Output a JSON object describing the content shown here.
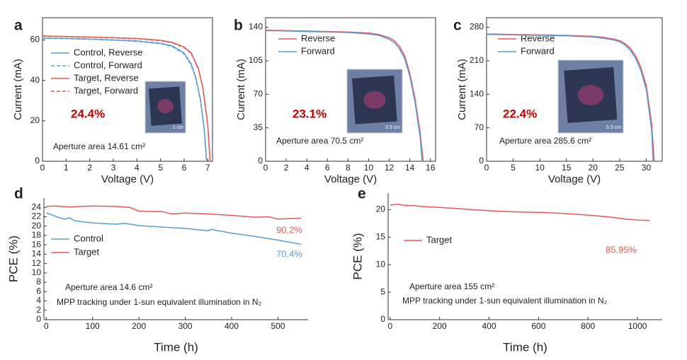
{
  "chart_data": [
    {
      "type": "line",
      "panel_label": "a",
      "xlabel": "Voltage (V)",
      "ylabel": "Current (mA)",
      "xlim": [
        0,
        7.2
      ],
      "ylim": [
        0,
        71
      ],
      "xticks": [
        0,
        1,
        2,
        3,
        4,
        5,
        6,
        7
      ],
      "yticks": [
        0,
        20,
        40,
        60
      ],
      "legend": "upper left",
      "series": [
        {
          "name": "Control, Reverse",
          "color": "#5b9bd5",
          "dash": false,
          "x": [
            0,
            1,
            2,
            3,
            4,
            5,
            5.5,
            6,
            6.3,
            6.5,
            6.7,
            6.85,
            6.95
          ],
          "values": [
            61,
            60.7,
            60.4,
            60,
            59.5,
            58.3,
            57,
            53.5,
            48,
            41,
            30,
            16,
            0
          ]
        },
        {
          "name": "Control, Forward",
          "color": "#5b9bd5",
          "dash": true,
          "x": [
            0,
            1,
            2,
            3,
            4,
            5,
            5.5,
            6,
            6.3,
            6.5,
            6.7,
            6.85,
            6.95
          ],
          "values": [
            60.9,
            60.6,
            60.3,
            59.9,
            59.3,
            58.1,
            56.7,
            53.1,
            47.5,
            40.5,
            29.5,
            15.5,
            0
          ]
        },
        {
          "name": "Target, Reverse",
          "color": "#e05a5a",
          "dash": false,
          "x": [
            0,
            1,
            2,
            3,
            4,
            5,
            5.5,
            6,
            6.3,
            6.6,
            6.8,
            7,
            7.1
          ],
          "values": [
            62,
            61.7,
            61.4,
            61.1,
            60.7,
            59.8,
            58.8,
            56.5,
            53.5,
            46,
            36,
            18,
            0
          ]
        },
        {
          "name": "Target, Forward",
          "color": "#e05a5a",
          "dash": true,
          "x": [
            0,
            1,
            2,
            3,
            4,
            5,
            5.5,
            6,
            6.3,
            6.6,
            6.8,
            7,
            7.1
          ],
          "values": [
            61.9,
            61.6,
            61.3,
            61,
            60.6,
            59.6,
            58.6,
            56.2,
            53.2,
            45.6,
            35.5,
            17.5,
            0
          ]
        }
      ],
      "annotations": [
        {
          "text": "24.4%",
          "color": "#c00000"
        },
        {
          "text": "Aperture area 14.61 cm²",
          "color": "#222222"
        }
      ],
      "inset_label": "1 cm"
    },
    {
      "type": "line",
      "panel_label": "b",
      "xlabel": "Voltage (V)",
      "ylabel": "Current (mA)",
      "xlim": [
        0,
        16.5
      ],
      "ylim": [
        0,
        150
      ],
      "xticks": [
        0,
        2,
        4,
        6,
        8,
        10,
        12,
        14,
        16
      ],
      "yticks": [
        0,
        35,
        70,
        105,
        140
      ],
      "legend": "upper left",
      "series": [
        {
          "name": "Reverse",
          "color": "#e05a5a",
          "dash": false,
          "x": [
            0,
            2,
            4,
            6,
            8,
            10,
            11,
            12,
            12.5,
            13,
            13.5,
            14,
            14.5,
            15,
            15.3
          ],
          "values": [
            137,
            136.5,
            136,
            135.5,
            135,
            134,
            132.5,
            129,
            126,
            120,
            110,
            92,
            66,
            30,
            0
          ]
        },
        {
          "name": "Forward",
          "color": "#5b9bd5",
          "dash": false,
          "x": [
            0,
            2,
            4,
            6,
            8,
            10,
            11,
            12,
            12.5,
            13,
            13.5,
            14,
            14.5,
            15,
            15.2
          ],
          "values": [
            136.5,
            136,
            135.5,
            135,
            134.5,
            133,
            131.5,
            127.5,
            124,
            117.5,
            107,
            89,
            62,
            25,
            0
          ]
        }
      ],
      "annotations": [
        {
          "text": "23.1%",
          "color": "#c00000"
        },
        {
          "text": "Aperture area 70.5 cm²",
          "color": "#222222"
        }
      ],
      "inset_label": "3.5 cm"
    },
    {
      "type": "line",
      "panel_label": "c",
      "xlabel": "Voltage (V)",
      "ylabel": "Current (mA)",
      "xlim": [
        0,
        33
      ],
      "ylim": [
        0,
        300
      ],
      "xticks": [
        0,
        5,
        10,
        15,
        20,
        25,
        30
      ],
      "yticks": [
        0,
        70,
        140,
        210,
        280
      ],
      "legend": "upper left",
      "series": [
        {
          "name": "Reverse",
          "color": "#e05a5a",
          "dash": false,
          "x": [
            0,
            5,
            10,
            15,
            20,
            22,
            24,
            25,
            26,
            27,
            28,
            29,
            30,
            31,
            31.5
          ],
          "values": [
            266,
            265,
            264,
            263,
            261,
            259,
            255,
            252,
            246,
            236,
            220,
            196,
            158,
            80,
            0
          ]
        },
        {
          "name": "Forward",
          "color": "#5b9bd5",
          "dash": false,
          "x": [
            0,
            5,
            10,
            15,
            20,
            22,
            24,
            25,
            26,
            27,
            28,
            29,
            30,
            31,
            31.3
          ],
          "values": [
            265,
            264,
            263,
            262,
            259.5,
            257,
            253,
            249.5,
            243,
            232,
            215,
            189,
            150,
            66,
            0
          ]
        }
      ],
      "annotations": [
        {
          "text": "22.4%",
          "color": "#c00000"
        },
        {
          "text": "Aperture area 285.6 cm²",
          "color": "#222222"
        }
      ],
      "inset_label": "5.5 cm"
    },
    {
      "type": "line",
      "panel_label": "d",
      "xlabel": "Time (h)",
      "ylabel": "PCE (%)",
      "xlim": [
        -5,
        565
      ],
      "ylim": [
        0,
        26
      ],
      "xticks": [
        0,
        100,
        200,
        300,
        400,
        500
      ],
      "yticks": [
        0,
        2,
        4,
        6,
        8,
        10,
        12,
        14,
        16,
        18,
        20,
        22,
        24
      ],
      "legend": "center left",
      "series": [
        {
          "name": "Control",
          "color": "#5b9bd5",
          "dash": false,
          "x": [
            0,
            10,
            25,
            40,
            50,
            60,
            80,
            100,
            150,
            170,
            200,
            250,
            300,
            350,
            355,
            400,
            450,
            500,
            550
          ],
          "values": [
            22.8,
            22.5,
            21.9,
            21.5,
            21.8,
            21.2,
            20.9,
            20.7,
            20.4,
            20.6,
            20.1,
            19.8,
            19.5,
            19,
            19.3,
            18.5,
            17.8,
            17,
            16.1
          ]
        },
        {
          "name": "Target",
          "color": "#e05a5a",
          "dash": false,
          "x": [
            0,
            20,
            50,
            100,
            150,
            180,
            200,
            250,
            270,
            300,
            350,
            400,
            450,
            480,
            500,
            550
          ],
          "values": [
            24.2,
            24.3,
            24.1,
            24.3,
            24.2,
            24,
            23.2,
            23.1,
            22.6,
            22.8,
            22.6,
            22.3,
            21.9,
            22,
            21.5,
            21.7
          ]
        }
      ],
      "annotations": [
        {
          "text": "90.2%",
          "color": "#e05a5a"
        },
        {
          "text": "70.4%",
          "color": "#5b9bd5"
        },
        {
          "text": "Aperture area 14.6 cm²",
          "color": "#222222"
        },
        {
          "text": "MPP tracking under 1-sun equivalent illumination in N₂",
          "color": "#222222"
        }
      ]
    },
    {
      "type": "line",
      "panel_label": "e",
      "xlabel": "Time (h)",
      "ylabel": "PCE (%)",
      "xlim": [
        -8,
        1100
      ],
      "ylim": [
        0,
        23
      ],
      "xticks": [
        0,
        200,
        400,
        600,
        800,
        1000
      ],
      "yticks": [
        0,
        5,
        10,
        15,
        20
      ],
      "legend": "center left",
      "series": [
        {
          "name": "Target",
          "color": "#e05a5a",
          "dash": false,
          "x": [
            0,
            30,
            50,
            100,
            150,
            200,
            300,
            400,
            500,
            600,
            700,
            800,
            900,
            950,
            1000,
            1050
          ],
          "values": [
            20.8,
            21,
            20.8,
            20.7,
            20.5,
            20.4,
            20.1,
            19.8,
            19.6,
            19.5,
            19.3,
            19,
            18.6,
            18.3,
            18.1,
            18
          ]
        }
      ],
      "annotations": [
        {
          "text": "85.95%",
          "color": "#e05a5a"
        },
        {
          "text": "Aperture area 155 cm²",
          "color": "#222222"
        },
        {
          "text": "MPP tracking under 1-sun equivalent illumination in N₂",
          "color": "#222222"
        }
      ]
    }
  ]
}
